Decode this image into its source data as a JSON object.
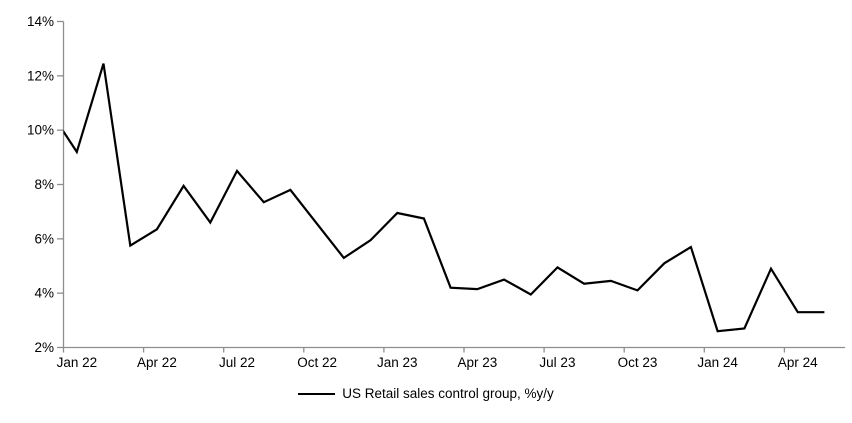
{
  "chart_data": {
    "type": "line",
    "title": "",
    "xlabel": "",
    "ylabel": "",
    "grid": "off",
    "background": "#ffffff",
    "axis_color": "#8e8e8e",
    "text_color": "#000000",
    "series": [
      {
        "name": "US Retail sales control group, %y/y",
        "color": "#000000",
        "line_width": 2.2,
        "first_point_clipped_at_left_axis": true,
        "months": [
          "Dec 21",
          "Jan 22",
          "Feb 22",
          "Mar 22",
          "Apr 22",
          "May 22",
          "Jun 22",
          "Jul 22",
          "Aug 22",
          "Sep 22",
          "Oct 22",
          "Nov 22",
          "Dec 22",
          "Jan 23",
          "Feb 23",
          "Mar 23",
          "Apr 23",
          "May 23",
          "Jun 23",
          "Jul 23",
          "Aug 23",
          "Sep 23",
          "Oct 23",
          "Nov 23",
          "Dec 23",
          "Jan 24",
          "Feb 24",
          "Mar 24",
          "Apr 24",
          "May 24"
        ],
        "values": [
          10.7,
          9.2,
          12.45,
          5.75,
          6.35,
          7.95,
          6.6,
          8.5,
          7.35,
          7.8,
          6.55,
          5.3,
          5.95,
          6.95,
          6.75,
          4.2,
          4.15,
          4.5,
          3.95,
          4.95,
          4.35,
          4.45,
          4.1,
          5.1,
          5.7,
          2.6,
          2.7,
          4.9,
          3.3,
          3.3
        ]
      }
    ],
    "x_axis": {
      "tick_labels": [
        "Jan 22",
        "Apr 22",
        "Jul 22",
        "Oct 22",
        "Jan 23",
        "Apr 23",
        "Jul 23",
        "Oct 23",
        "Jan 24",
        "Apr 24"
      ],
      "months_per_tick": 3
    },
    "y_axis": {
      "tick_labels": [
        "2%",
        "4%",
        "6%",
        "8%",
        "10%",
        "12%",
        "14%"
      ],
      "min": 2,
      "max": 14,
      "step": 2,
      "unit": "%"
    },
    "legend": {
      "position": "bottom-center",
      "entries": [
        {
          "label": "US Retail sales control group, %y/y",
          "marker": "line",
          "color": "#000000"
        }
      ]
    }
  }
}
